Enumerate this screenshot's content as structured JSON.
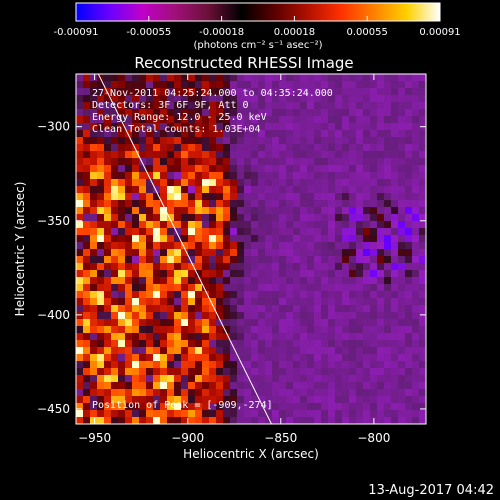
{
  "colorbar": {
    "tick_labels": [
      "-0.00091",
      "-0.00055",
      "-0.00018",
      "0.00018",
      "0.00055",
      "0.00091"
    ],
    "min": -0.00091,
    "max": 0.00091,
    "unit_label": "(photons cm⁻² s⁻¹ asec⁻²)",
    "gradient_colors": [
      "#0000ff",
      "#6a00ff",
      "#c000c8",
      "#a01078",
      "#6a1038",
      "#000000",
      "#5a0000",
      "#b01000",
      "#ff3000",
      "#ff8000",
      "#ffd000",
      "#ffffff"
    ]
  },
  "chart_data": {
    "type": "heatmap",
    "title": "Reconstructed RHESSI Image",
    "xlabel": "Heliocentric X (arcsec)",
    "ylabel": "Heliocentric Y (arcsec)",
    "xlim": [
      -960,
      -772
    ],
    "ylim": [
      -458,
      -272
    ],
    "xticks": [
      -950,
      -900,
      -850,
      -800
    ],
    "yticks": [
      -300,
      -350,
      -400,
      -450
    ],
    "xtick_labels": [
      "−950",
      "−900",
      "−850",
      "−800"
    ],
    "ytick_labels": [
      "−300",
      "−350",
      "−400",
      "−450"
    ],
    "grid": false,
    "limb_line": [
      [
        -948,
        -272
      ],
      [
        -855,
        -458
      ]
    ],
    "peak": [
      -909,
      -274
    ],
    "regions": {
      "left_bright_region": [
        -960,
        -900,
        -458,
        -330
      ],
      "center_bright_blob": [
        -935,
        -875,
        -365,
        -330
      ],
      "right_dark_region": [
        -870,
        -772,
        -458,
        -272
      ],
      "right_ring_feature": [
        -812,
        -780,
        -375,
        -345
      ]
    }
  },
  "annotations": {
    "time_range": "27-Nov-2011 04:25:24.000 to 04:35:24.000",
    "detectors": "Detectors: 3F 6F 9F, Att 0",
    "energy_range": "Energy Range: 12.0 - 25.0 keV",
    "method_counts": "Clean   Total counts: 1.03E+04",
    "peak_position": "Position of Peak = [-909,-274]"
  },
  "footer": {
    "timestamp": "13-Aug-2017 04:42"
  }
}
